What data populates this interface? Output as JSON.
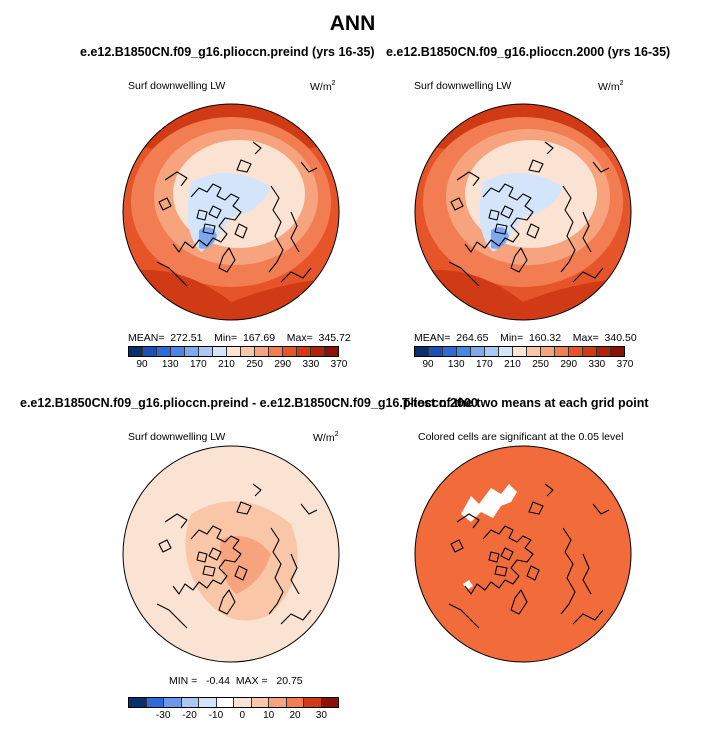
{
  "figure": {
    "title": "ANN",
    "panels": [
      {
        "case": "e.e12.B1850CN.f09_g16.plioccn.preind (yrs 16-35)",
        "variable": "Surf downwelling LW",
        "units_base": "W/m",
        "units_exp": "2",
        "stats": "MEAN=  272.51    Min=  167.69    Max=  345.72",
        "colorbar_ticks": [
          "90",
          "130",
          "170",
          "210",
          "250",
          "290",
          "330",
          "370"
        ]
      },
      {
        "case": "e.e12.B1850CN.f09_g16.plioccn.2000 (yrs 16-35)",
        "variable": "Surf downwelling LW",
        "units_base": "W/m",
        "units_exp": "2",
        "stats": "MEAN=  264.65    Min=  160.32    Max=  340.50",
        "colorbar_ticks": [
          "90",
          "130",
          "170",
          "210",
          "250",
          "290",
          "330",
          "370"
        ]
      },
      {
        "case": "e.e12.B1850CN.f09_g16.plioccn.preind - e.e12.B1850CN.f09_g16.plioccn.2000",
        "variable": "Surf downwelling LW",
        "units_base": "W/m",
        "units_exp": "2",
        "stats": "MIN =   -0.44  MAX =   20.75",
        "colorbar_ticks": [
          "-30",
          "-20",
          "-10",
          "0",
          "10",
          "20",
          "30"
        ]
      },
      {
        "case": "T-test of the two means at each grid point",
        "variable": "Colored cells are significant at the 0.05 level"
      }
    ]
  },
  "colors": {
    "abs_scale": [
      "#08306b",
      "#1c4fb8",
      "#2e6ad8",
      "#4a86e8",
      "#7fa9ee",
      "#aac8f5",
      "#d4e4fb",
      "#fbe3d3",
      "#f9c7a8",
      "#f7a47e",
      "#f27d53",
      "#e6552a",
      "#d03a14",
      "#b0230a",
      "#8c1004"
    ],
    "diff_scale": [
      "#08306b",
      "#2e6ad8",
      "#6b97ec",
      "#aac8f5",
      "#d4e4fb",
      "#ffffff",
      "#fbe3d3",
      "#f9c7a8",
      "#f7a47e",
      "#f27d53",
      "#d03a14",
      "#8c1004"
    ],
    "significant": "#f26b3a",
    "ocean_base": "#fbe0cf"
  }
}
